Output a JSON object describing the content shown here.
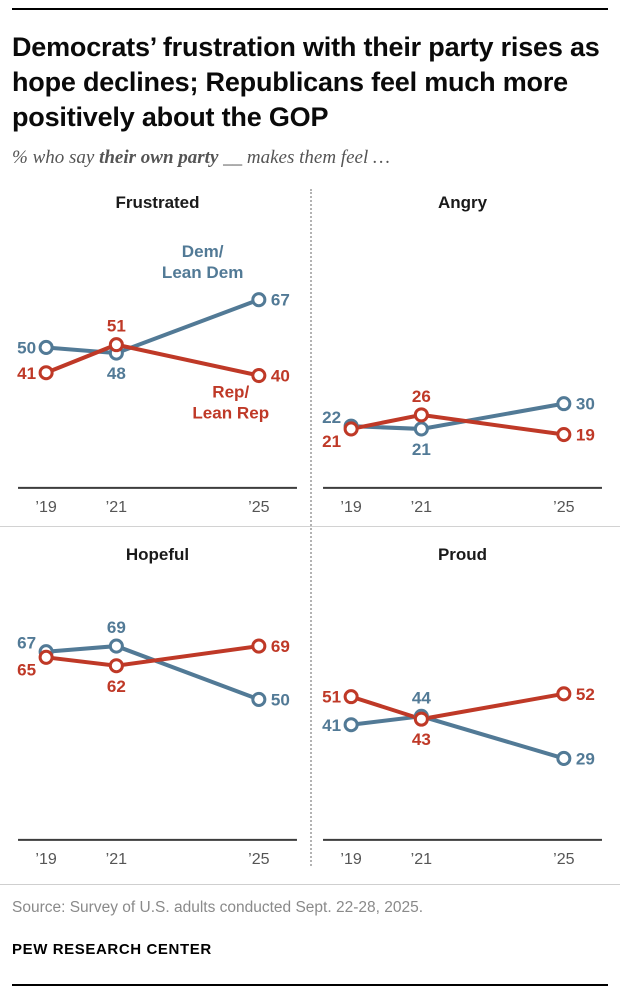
{
  "page": {
    "title": "Democrats’ frustration with their party rises as hope declines; Republicans feel much more positively about the GOP",
    "subtitle_prefix": "% who say ",
    "subtitle_bold": "their own party",
    "subtitle_suffix": " __ makes them feel …",
    "source": "Source: Survey of U.S. adults conducted Sept. 22-28, 2025.",
    "brand": "PEW RESEARCH CENTER"
  },
  "colors": {
    "dem": "#527a96",
    "rep": "#bf3927",
    "axis": "#3d3d3d",
    "tick": "#555555"
  },
  "legend": {
    "dem_label": "Dem/Lean Dem",
    "rep_label": "Rep/Lean Rep"
  },
  "chart_data": [
    {
      "type": "line",
      "title": "Frustrated",
      "x_labels": [
        "’19",
        "’21",
        "’25"
      ],
      "x_years": [
        2019,
        2021,
        2025
      ],
      "ylim": [
        0,
        100
      ],
      "series": [
        {
          "name": "Dem/Lean Dem",
          "color_key": "dem",
          "values": [
            50,
            48,
            67
          ],
          "label_pos": [
            "left",
            "below",
            "right"
          ]
        },
        {
          "name": "Rep/Lean Rep",
          "color_key": "rep",
          "values": [
            41,
            51,
            40
          ],
          "label_pos": [
            "left",
            "above",
            "right"
          ]
        }
      ],
      "annotations": [
        {
          "color_key": "dem",
          "lines": [
            "Dem/",
            "Lean Dem"
          ],
          "x": 190,
          "y": 42
        },
        {
          "color_key": "rep",
          "lines": [
            "Rep/",
            "Lean Rep"
          ],
          "x": 218,
          "y": 182
        }
      ]
    },
    {
      "type": "line",
      "title": "Angry",
      "x_labels": [
        "’19",
        "’21",
        "’25"
      ],
      "x_years": [
        2019,
        2021,
        2025
      ],
      "ylim": [
        0,
        100
      ],
      "series": [
        {
          "name": "Dem/Lean Dem",
          "color_key": "dem",
          "values": [
            22,
            21,
            30
          ],
          "label_pos": [
            "left-up",
            "below",
            "right"
          ]
        },
        {
          "name": "Rep/Lean Rep",
          "color_key": "rep",
          "values": [
            21,
            26,
            19
          ],
          "label_pos": [
            "left-down",
            "above",
            "right"
          ]
        }
      ],
      "annotations": []
    },
    {
      "type": "line",
      "title": "Hopeful",
      "x_labels": [
        "’19",
        "’21",
        "’25"
      ],
      "x_years": [
        2019,
        2021,
        2025
      ],
      "ylim": [
        0,
        100
      ],
      "series": [
        {
          "name": "Dem/Lean Dem",
          "color_key": "dem",
          "values": [
            67,
            69,
            50
          ],
          "label_pos": [
            "left-up",
            "above",
            "right"
          ]
        },
        {
          "name": "Rep/Lean Rep",
          "color_key": "rep",
          "values": [
            65,
            62,
            69
          ],
          "label_pos": [
            "left-down",
            "below",
            "right"
          ]
        }
      ],
      "annotations": []
    },
    {
      "type": "line",
      "title": "Proud",
      "x_labels": [
        "’19",
        "’21",
        "’25"
      ],
      "x_years": [
        2019,
        2021,
        2025
      ],
      "ylim": [
        0,
        100
      ],
      "series": [
        {
          "name": "Dem/Lean Dem",
          "color_key": "dem",
          "values": [
            41,
            44,
            29
          ],
          "label_pos": [
            "left",
            "above",
            "right"
          ]
        },
        {
          "name": "Rep/Lean Rep",
          "color_key": "rep",
          "values": [
            51,
            43,
            52
          ],
          "label_pos": [
            "left",
            "below",
            "right"
          ]
        }
      ],
      "annotations": []
    }
  ]
}
